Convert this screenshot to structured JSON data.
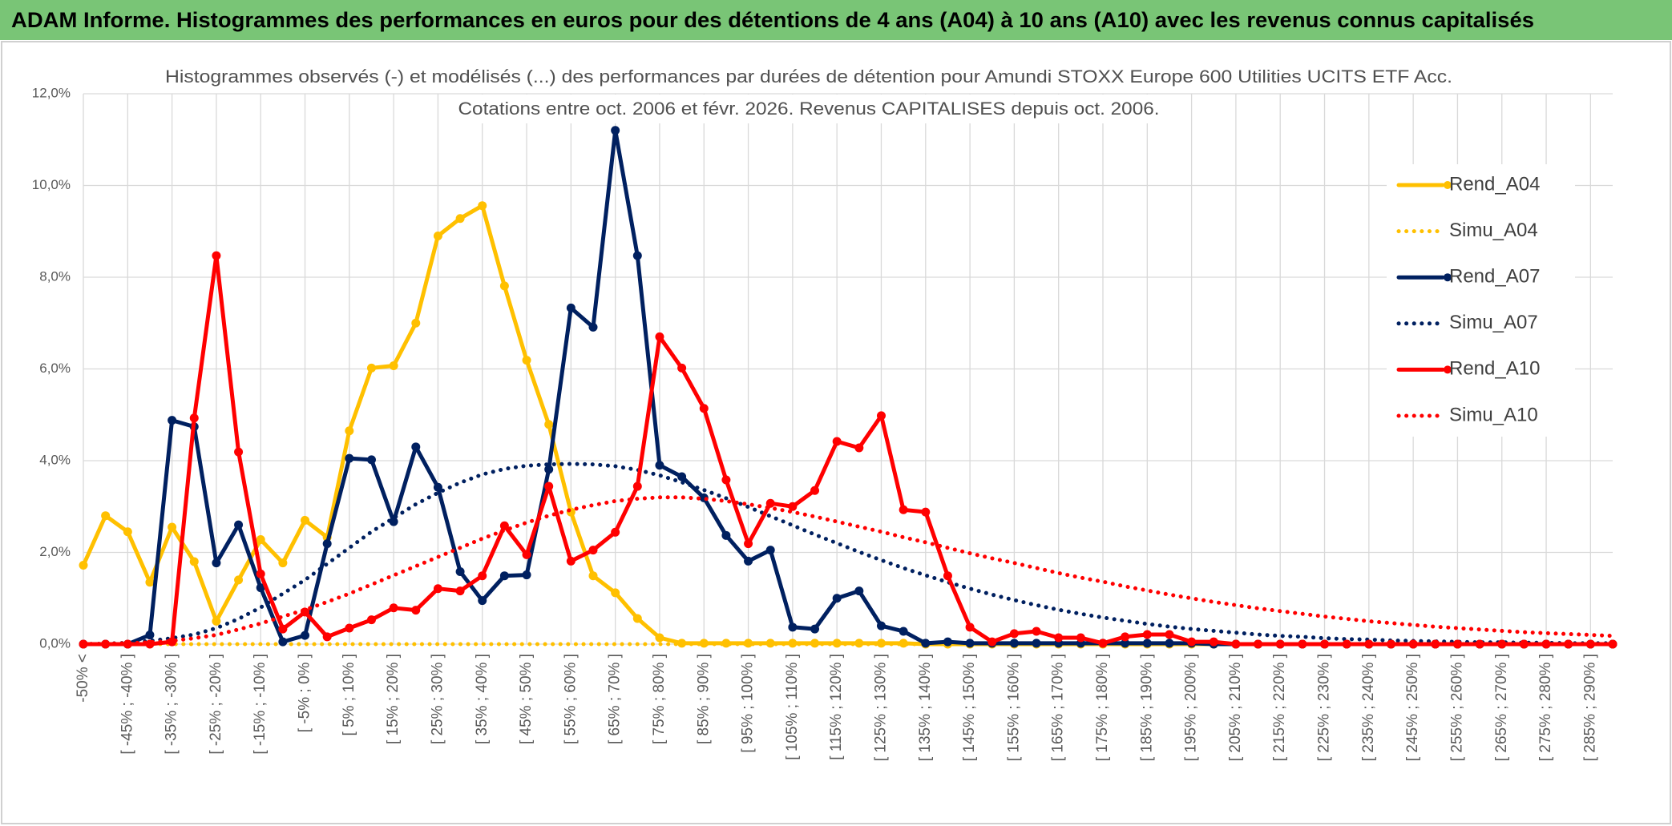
{
  "header": {
    "title": "ADAM Informe. Histogrammes des performances en euros pour des détentions de 4 ans (A04) à 10 ans (A10) avec les revenus connus capitalisés"
  },
  "chart_data": {
    "type": "line",
    "title": "Histogrammes observés (-) et modélisés (...) des performances par durées de détention pour Amundi STOXX Europe 600 Utilities UCITS ETF Acc.",
    "subtitle": "Cotations entre oct. 2006 et févr. 2026. Revenus CAPITALISES depuis oct. 2006.",
    "categories": [
      "-50% <",
      null,
      "[ -45% ; -40% ]",
      null,
      "[ -35% ; -30% ]",
      null,
      "[ -25% ; -20% ]",
      null,
      "[ -15% ; -10% ]",
      null,
      "[ -5% ; 0% ]",
      null,
      "[ 5% ; 10% ]",
      null,
      "[ 15% ; 20% ]",
      null,
      "[ 25% ; 30% ]",
      null,
      "[ 35% ; 40% ]",
      null,
      "[ 45% ; 50% ]",
      null,
      "[ 55% ; 60% ]",
      null,
      "[ 65% ; 70% ]",
      null,
      "[ 75% ; 80% ]",
      null,
      "[ 85% ; 90% ]",
      null,
      "[ 95% ; 100% ]",
      null,
      "[ 105% ; 110% ]",
      null,
      "[ 115% ; 120% ]",
      null,
      "[ 125% ; 130% ]",
      null,
      "[ 135% ; 140% ]",
      null,
      "[ 145% ; 150% ]",
      null,
      "[ 155% ; 160% ]",
      null,
      "[ 165% ; 170% ]",
      null,
      "[ 175% ; 180% ]",
      null,
      "[ 185% ; 190% ]",
      null,
      "[ 195% ; 200% ]",
      null,
      "[ 205% ; 210% ]",
      null,
      "[ 215% ; 220% ]",
      null,
      "[ 225% ; 230% ]",
      null,
      "[ 235% ; 240% ]",
      null,
      "[ 245% ; 250% ]",
      null,
      "[ 255% ; 260% ]",
      null,
      "[ 265% ; 270% ]",
      null,
      "[ 275% ; 280% ]",
      null,
      "[ 285% ; 290% ]",
      null
    ],
    "series": [
      {
        "name": "Rend_A04",
        "color": "#ffc000",
        "style": "solid",
        "values": [
          1.72,
          2.8,
          2.45,
          1.35,
          2.55,
          1.8,
          0.5,
          1.4,
          2.28,
          1.77,
          2.7,
          2.33,
          4.65,
          6.02,
          6.07,
          7.0,
          8.9,
          9.28,
          9.56,
          7.81,
          6.19,
          4.79,
          2.88,
          1.49,
          1.12,
          0.56,
          0.14,
          0.02,
          0.02,
          0.02,
          0.02,
          0.02,
          0.02,
          0.02,
          0.02,
          0.02,
          0.02,
          0.02,
          0,
          0,
          0,
          0,
          0,
          0,
          0,
          0,
          0,
          0,
          0,
          0,
          0,
          0,
          0,
          0,
          0,
          0,
          0,
          0,
          0,
          0,
          0,
          0,
          0,
          0,
          0,
          0,
          0,
          0,
          0,
          0
        ]
      },
      {
        "name": "Simu_A04",
        "color": "#ffc000",
        "style": "dotted",
        "values": [
          0,
          0,
          0,
          0,
          0,
          0,
          0,
          0,
          0,
          0,
          0,
          0,
          0,
          0,
          0,
          0,
          0,
          0,
          0,
          0,
          0,
          0,
          0,
          0,
          0,
          0,
          0,
          0,
          0,
          0,
          0,
          0,
          0,
          0,
          0,
          0,
          0,
          0,
          0,
          0,
          0,
          0,
          0,
          0,
          0,
          0,
          0,
          0,
          0,
          0,
          0,
          0,
          0,
          0,
          0,
          0,
          0,
          0,
          0,
          0,
          0,
          0,
          0,
          0,
          0,
          0,
          0,
          0,
          0,
          0
        ]
      },
      {
        "name": "Rend_A07",
        "color": "#002060",
        "style": "solid",
        "values": [
          0,
          0,
          0,
          0.2,
          4.88,
          4.74,
          1.77,
          2.6,
          1.23,
          0.05,
          0.19,
          2.19,
          4.05,
          4.02,
          2.67,
          4.3,
          3.42,
          1.58,
          0.95,
          1.49,
          1.51,
          3.81,
          7.33,
          6.91,
          11.2,
          8.47,
          3.9,
          3.65,
          3.19,
          2.37,
          1.81,
          2.05,
          0.37,
          0.33,
          1.0,
          1.16,
          0.4,
          0.28,
          0.02,
          0.05,
          0.02,
          0.02,
          0.02,
          0.02,
          0.02,
          0.02,
          0.02,
          0.02,
          0.02,
          0.02,
          0.02,
          0,
          0,
          0,
          0,
          0,
          0,
          0,
          0,
          0,
          0,
          0,
          0,
          0,
          0,
          0,
          0,
          0,
          0,
          0
        ]
      },
      {
        "name": "Simu_A07",
        "color": "#002060",
        "style": "dotted",
        "values": [
          0,
          0.01,
          0.03,
          0.07,
          0.13,
          0.21,
          0.35,
          0.55,
          0.8,
          1.1,
          1.4,
          1.75,
          2.1,
          2.45,
          2.75,
          3.05,
          3.3,
          3.52,
          3.7,
          3.82,
          3.89,
          3.92,
          3.93,
          3.92,
          3.88,
          3.8,
          3.68,
          3.53,
          3.36,
          3.18,
          2.99,
          2.79,
          2.59,
          2.39,
          2.2,
          2.01,
          1.83,
          1.66,
          1.5,
          1.35,
          1.21,
          1.08,
          0.96,
          0.85,
          0.75,
          0.66,
          0.58,
          0.51,
          0.44,
          0.38,
          0.33,
          0.29,
          0.25,
          0.21,
          0.18,
          0.16,
          0.13,
          0.11,
          0.1,
          0.08,
          0.07,
          0.06,
          0.05,
          0.04,
          0.04,
          0.03,
          0.03,
          0.02,
          0.02,
          0.02
        ]
      },
      {
        "name": "Rend_A10",
        "color": "#ff0000",
        "style": "solid",
        "values": [
          0,
          0,
          0,
          0,
          0.05,
          4.93,
          8.47,
          4.19,
          1.53,
          0.33,
          0.7,
          0.16,
          0.35,
          0.53,
          0.79,
          0.74,
          1.21,
          1.16,
          1.49,
          2.58,
          1.95,
          3.44,
          1.81,
          2.05,
          2.44,
          3.44,
          6.7,
          6.02,
          5.14,
          3.58,
          2.19,
          3.07,
          3.0,
          3.35,
          4.42,
          4.28,
          4.98,
          2.93,
          2.88,
          1.49,
          0.37,
          0.05,
          0.23,
          0.28,
          0.14,
          0.14,
          0.02,
          0.16,
          0.21,
          0.21,
          0.05,
          0.05,
          0,
          0,
          0,
          0,
          0,
          0,
          0,
          0,
          0,
          0,
          0,
          0,
          0,
          0,
          0,
          0,
          0,
          0
        ]
      },
      {
        "name": "Simu_A10",
        "color": "#ff0000",
        "style": "dotted",
        "values": [
          0,
          0.01,
          0.02,
          0.04,
          0.07,
          0.13,
          0.2,
          0.32,
          0.45,
          0.6,
          0.75,
          0.92,
          1.1,
          1.3,
          1.5,
          1.7,
          1.9,
          2.1,
          2.3,
          2.48,
          2.65,
          2.8,
          2.93,
          3.03,
          3.12,
          3.17,
          3.2,
          3.2,
          3.17,
          3.12,
          3.05,
          2.97,
          2.88,
          2.78,
          2.67,
          2.56,
          2.45,
          2.33,
          2.22,
          2.1,
          1.98,
          1.87,
          1.77,
          1.66,
          1.55,
          1.45,
          1.36,
          1.26,
          1.17,
          1.08,
          1.0,
          0.92,
          0.85,
          0.78,
          0.72,
          0.66,
          0.6,
          0.55,
          0.5,
          0.46,
          0.42,
          0.38,
          0.35,
          0.32,
          0.29,
          0.26,
          0.24,
          0.22,
          0.2,
          0.18
        ]
      }
    ],
    "ylim": [
      0,
      12
    ],
    "yticks": [
      {
        "value": 0,
        "label": "0,0%"
      },
      {
        "value": 2,
        "label": "2,0%"
      },
      {
        "value": 4,
        "label": "4,0%"
      },
      {
        "value": 6,
        "label": "6,0%"
      },
      {
        "value": 8,
        "label": "8,0%"
      },
      {
        "value": 10,
        "label": "10,0%"
      },
      {
        "value": 12,
        "label": "12,0%"
      }
    ],
    "grid": true,
    "legend": "right"
  }
}
